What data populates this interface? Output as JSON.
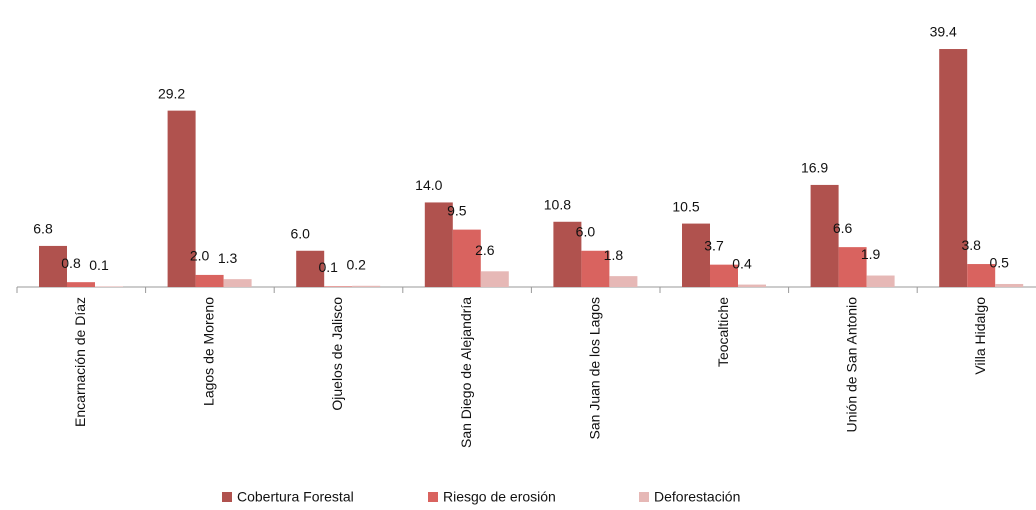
{
  "chart_data": {
    "type": "bar",
    "categories": [
      "Encarnación de Díaz",
      "Lagos de Moreno",
      "Ojuelos de Jalisco",
      "San Diego de Alejandría",
      "San Juan de los Lagos",
      "Teocaltiche",
      "Unión de San Antonio",
      "Villa Hidalgo"
    ],
    "series": [
      {
        "name": "Cobertura Forestal",
        "color": "#b0524e",
        "values": [
          6.8,
          29.2,
          6.0,
          14.0,
          10.8,
          10.5,
          16.9,
          39.4
        ],
        "value_labels": [
          "6.8",
          "29.2",
          "6.0",
          "14.0",
          "10.8",
          "10.5",
          "16.9",
          "39.4"
        ]
      },
      {
        "name": "Riesgo de erosión",
        "color": "#d9635f",
        "values": [
          0.8,
          2.0,
          0.1,
          9.5,
          6.0,
          3.7,
          6.6,
          3.8
        ],
        "value_labels": [
          "0.8",
          "2.0",
          "0.1",
          "9.5",
          "6.0",
          "3.7",
          "6.6",
          "3.8"
        ]
      },
      {
        "name": "Deforestación",
        "color": "#e6b8b6",
        "values": [
          0.1,
          1.3,
          0.2,
          2.6,
          1.8,
          0.4,
          1.9,
          0.5
        ],
        "value_labels": [
          "0.1",
          "1.3",
          "0.2",
          "2.6",
          "1.8",
          "0.4",
          "1.9",
          "0.5"
        ]
      }
    ],
    "ylim": [
      0,
      40
    ],
    "legend": "bottom"
  }
}
